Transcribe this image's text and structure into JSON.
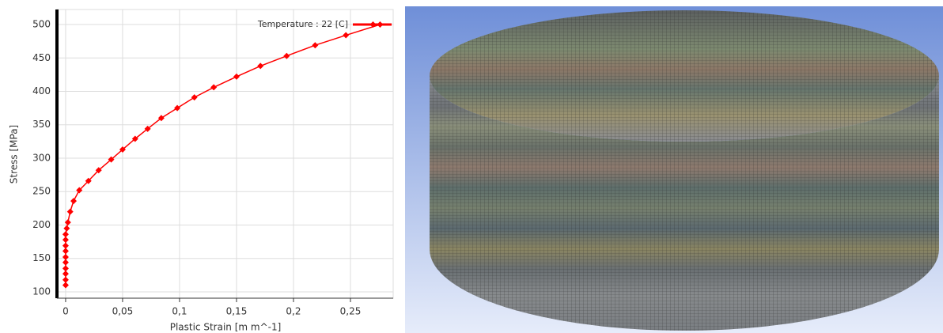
{
  "chart_data": {
    "type": "line",
    "x_label": "Plastic Strain  [m m^-1]",
    "y_label": "Stress  [MPa]",
    "x": [
      0,
      0,
      0,
      0,
      0,
      0,
      0,
      0,
      0,
      0,
      0.001,
      0.002,
      0.004,
      0.007,
      0.012,
      0.02,
      0.029,
      0.04,
      0.05,
      0.061,
      0.072,
      0.084,
      0.098,
      0.113,
      0.13,
      0.15,
      0.171,
      0.194,
      0.219,
      0.246,
      0.276
    ],
    "series": [
      {
        "name": "Temperature : 22 [C]",
        "color": "#ff0000",
        "values": [
          110,
          118,
          127,
          135,
          144,
          152,
          161,
          169,
          178,
          186,
          195,
          204,
          220,
          236,
          252,
          266,
          282,
          298,
          313,
          329,
          344,
          360,
          375,
          391,
          406,
          422,
          438,
          453,
          469,
          484,
          500
        ]
      }
    ],
    "xlim": [
      -0.0076,
      0.2875
    ],
    "ylim": [
      90.5,
      522.5
    ],
    "xticks": [
      0,
      {
        "value": 0.05,
        "label": "0,05"
      },
      {
        "value": 0.1,
        "label": "0,1"
      },
      {
        "value": 0.15,
        "label": "0,15"
      },
      {
        "value": 0.2,
        "label": "0,2"
      },
      {
        "value": 0.25,
        "label": "0,25"
      }
    ],
    "yticks": [
      100,
      150,
      200,
      250,
      300,
      350,
      400,
      450,
      500
    ],
    "grid": true,
    "legend": "top-right"
  }
}
